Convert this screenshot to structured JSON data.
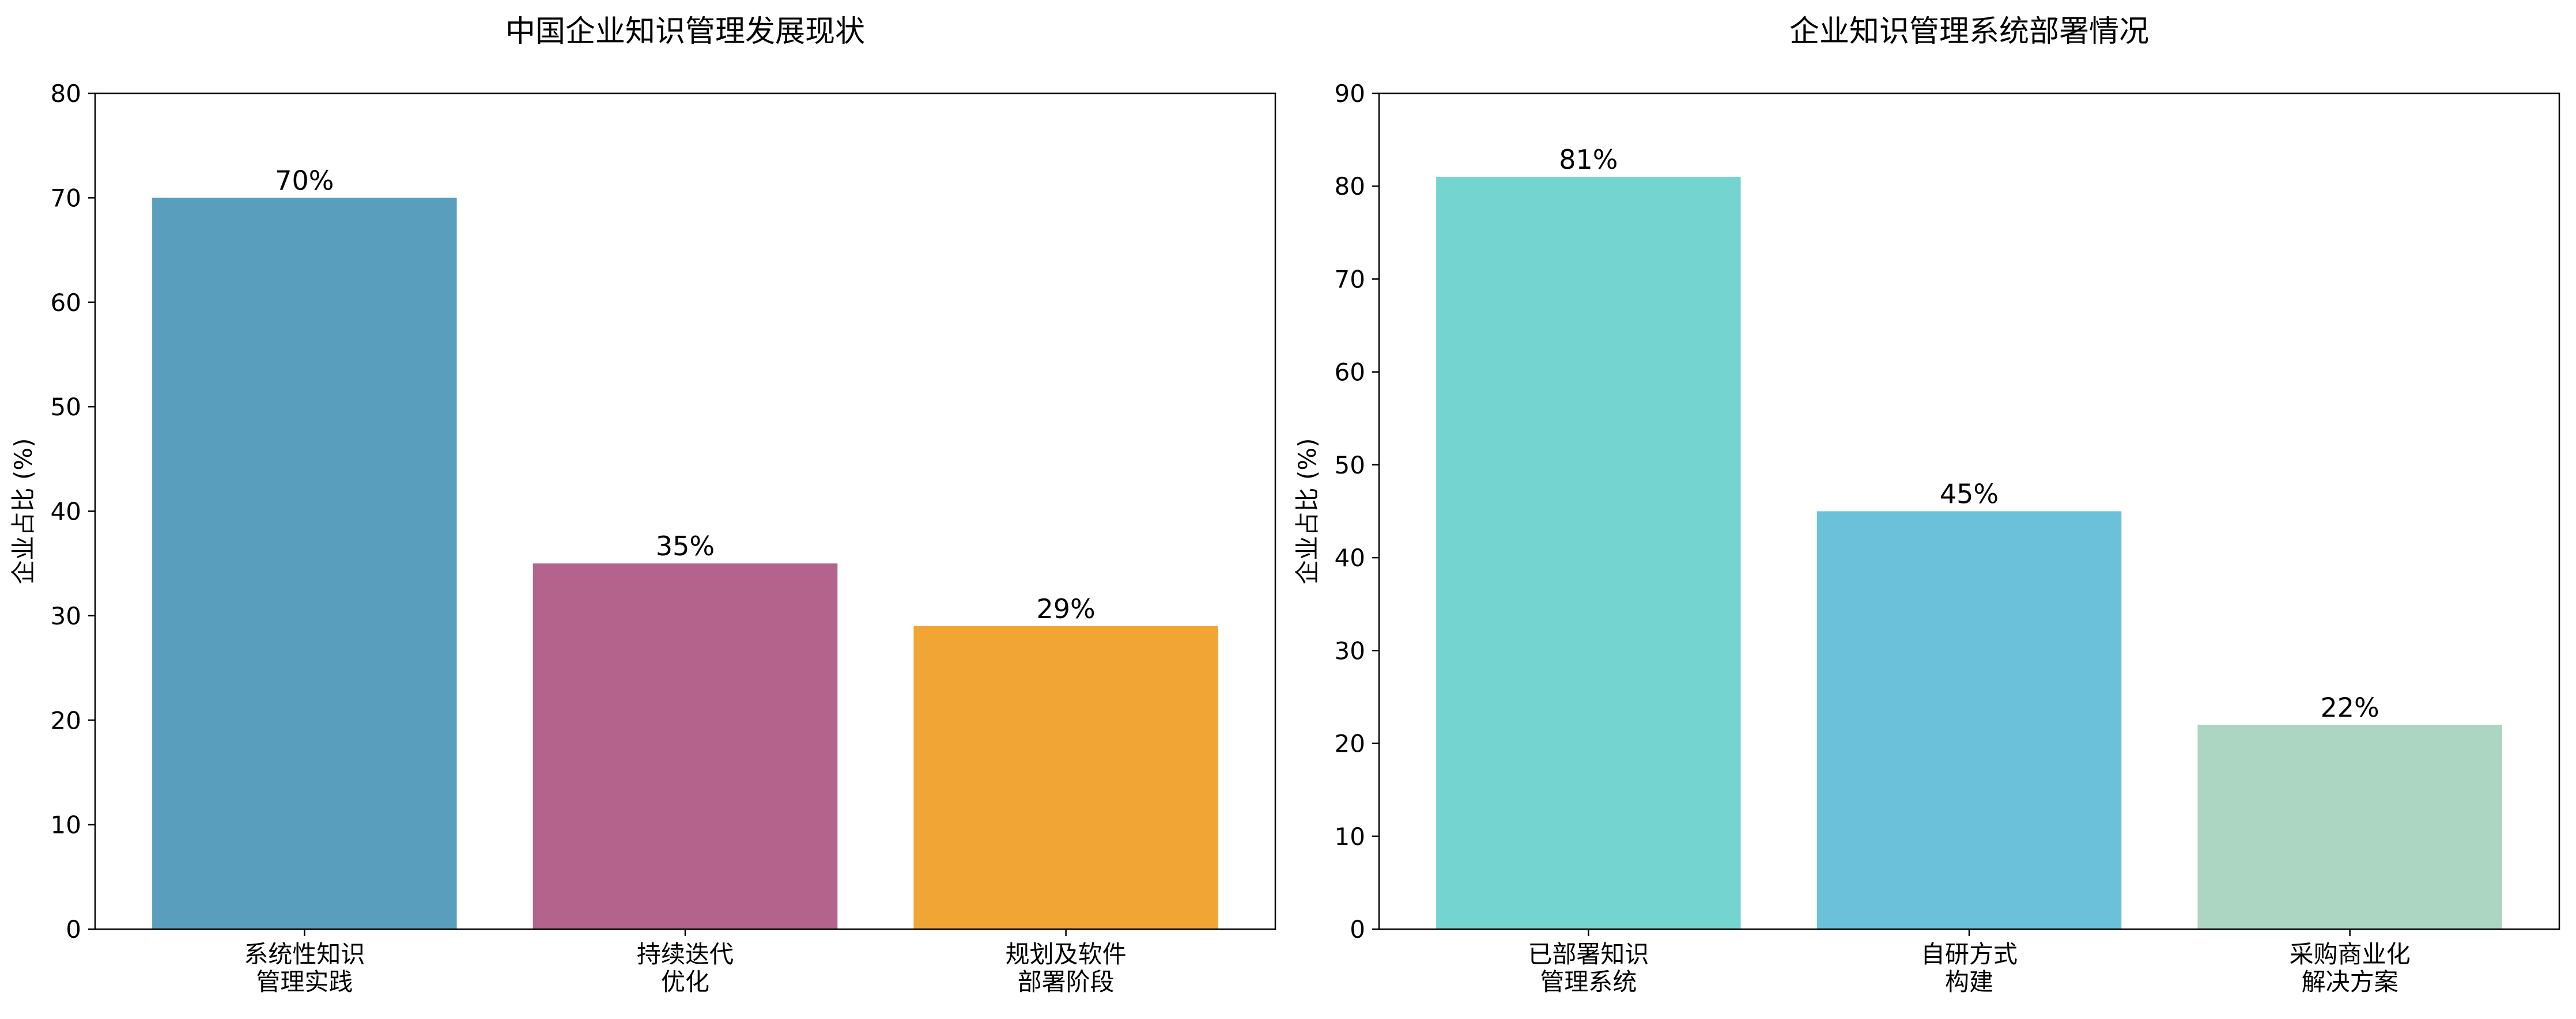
{
  "chart_data": [
    {
      "type": "bar",
      "title": "中国企业知识管理发展现状",
      "xlabel": "",
      "ylabel": "企业占比 (%)",
      "categories": [
        [
          "系统性知识",
          "管理实践"
        ],
        [
          "持续迭代",
          "优化"
        ],
        [
          "规划及软件",
          "部署阶段"
        ]
      ],
      "values": [
        70,
        35,
        29
      ],
      "data_labels": [
        "70%",
        "35%",
        "29%"
      ],
      "colors": [
        "#5a9ebd",
        "#b3638c",
        "#f0a535"
      ],
      "ylim": [
        0,
        80
      ],
      "yticks": [
        "0",
        "10",
        "20",
        "30",
        "40",
        "50",
        "60",
        "70",
        "80"
      ],
      "grid": false,
      "legend": "none"
    },
    {
      "type": "bar",
      "title": "企业知识管理系统部署情况",
      "xlabel": "",
      "ylabel": "企业占比 (%)",
      "categories": [
        [
          "已部署知识",
          "管理系统"
        ],
        [
          "自研方式",
          "构建"
        ],
        [
          "采购商业化",
          "解决方案"
        ]
      ],
      "values": [
        81,
        45,
        22
      ],
      "data_labels": [
        "81%",
        "45%",
        "22%"
      ],
      "colors": [
        "#74d5d0",
        "#6ac1d9",
        "#add6c2"
      ],
      "ylim": [
        0,
        90
      ],
      "yticks": [
        "0",
        "10",
        "20",
        "30",
        "40",
        "50",
        "60",
        "70",
        "80",
        "90"
      ],
      "grid": false,
      "legend": "none"
    }
  ]
}
